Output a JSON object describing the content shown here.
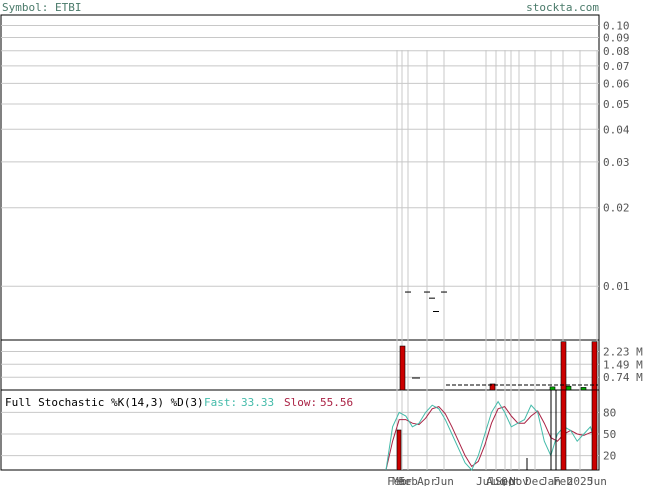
{
  "header": {
    "symbol_label": "Symbol: ETBI",
    "site_label": "stockta.com"
  },
  "colors": {
    "grid": "#c8c8c8",
    "frame": "#000000",
    "price_tick": "#000000",
    "volume_up": "#00aa00",
    "volume_down": "#cc0000",
    "fast_line": "#44bbaa",
    "slow_line": "#aa2244",
    "header_text": "#4a7a6a"
  },
  "chart_data": [
    {
      "type": "line",
      "name": "price",
      "scale": "log",
      "ylim": [
        0.0065,
        0.105
      ],
      "ytick_labels": [
        "0.10",
        "0.09",
        "0.08",
        "0.07",
        "0.06",
        "0.05",
        "0.04",
        "0.03",
        "0.02",
        "0.01"
      ],
      "ytick_values": [
        0.1,
        0.09,
        0.08,
        0.07,
        0.06,
        0.05,
        0.04,
        0.03,
        0.02,
        0.01
      ],
      "x_tick_labels": [
        "Feb",
        "Mar",
        "Feb",
        "Apr",
        "Jun",
        "Jul",
        "Aug",
        "Sep",
        "Oct",
        "Nov",
        "Dec",
        "Jan",
        "Feb",
        "2025",
        "Jun"
      ],
      "points": [
        {
          "date": "Feb",
          "close": 0.0095
        },
        {
          "date": "Mar",
          "close": 0.0095
        },
        {
          "date": "Apr",
          "close": 0.009
        },
        {
          "date": "May",
          "close": 0.008
        },
        {
          "date": "Jun",
          "close": 0.0095
        }
      ],
      "grid": true
    },
    {
      "type": "bar",
      "name": "volume",
      "ytick_labels": [
        "2.23 M",
        "1.49 M",
        "0.74 M"
      ],
      "ytick_values": [
        2.23,
        1.49,
        0.74
      ],
      "ylim": [
        0,
        2.9
      ],
      "unit": "M",
      "bars": [
        {
          "date": "Feb",
          "value": 2.55,
          "color": "down"
        },
        {
          "date": "Aug",
          "value": 0.35,
          "color": "down"
        },
        {
          "date": "Jan",
          "value": 0.18,
          "color": "up"
        },
        {
          "date": "Feb",
          "value": 0.22,
          "color": "up"
        },
        {
          "date": "Mar",
          "value": 2.8,
          "color": "down"
        },
        {
          "date": "Apr",
          "value": 0.15,
          "color": "up"
        },
        {
          "date": "Jun",
          "value": 2.8,
          "color": "down"
        }
      ],
      "grid": true
    },
    {
      "type": "line",
      "name": "stochastic",
      "title": "Full Stochastic %K(14,3) %D(3)",
      "fast_label": "Fast:",
      "fast_value": "33.33",
      "slow_label": "Slow:",
      "slow_value": "55.56",
      "ylim": [
        0,
        100
      ],
      "ytick_labels": [
        "80",
        "50",
        "20"
      ],
      "ytick_values": [
        80,
        50,
        20
      ],
      "series": [
        {
          "name": "Fast",
          "values": [
            0,
            60,
            80,
            75,
            60,
            65,
            80,
            90,
            85,
            70,
            50,
            30,
            10,
            0,
            20,
            50,
            80,
            95,
            80,
            60,
            65,
            70,
            90,
            80,
            40,
            20,
            50,
            60,
            55,
            40,
            50,
            60,
            33.33
          ]
        },
        {
          "name": "Slow",
          "values": [
            0,
            40,
            70,
            70,
            65,
            63,
            72,
            85,
            88,
            78,
            60,
            40,
            20,
            5,
            12,
            35,
            65,
            85,
            88,
            75,
            65,
            65,
            75,
            82,
            65,
            45,
            40,
            50,
            55,
            50,
            48,
            52,
            55.56
          ]
        }
      ],
      "grid": true
    }
  ]
}
